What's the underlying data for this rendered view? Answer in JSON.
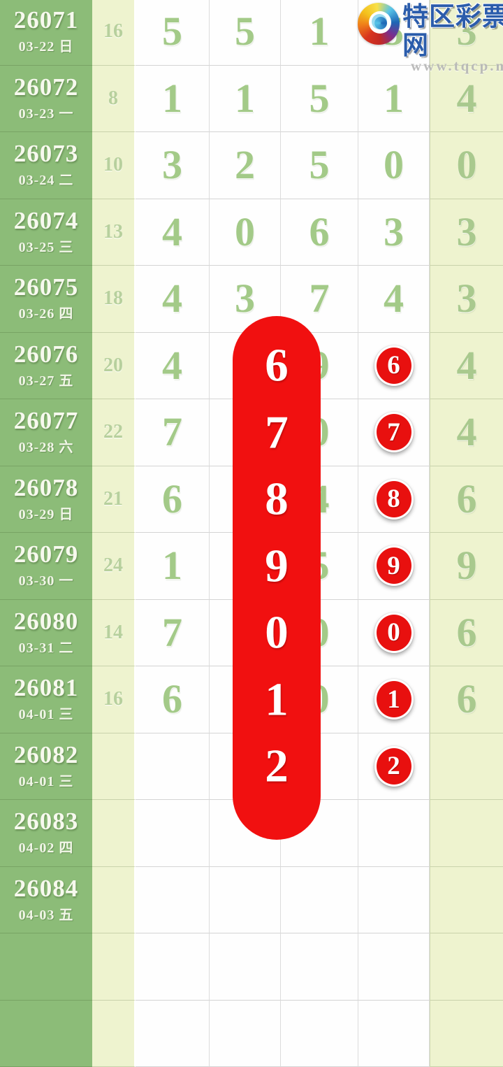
{
  "brand": {
    "site_name": "特区彩票网",
    "site_url": "www.tqcp.net"
  },
  "colors": {
    "accent_red": "#f11010",
    "green_column": "#8cbc78",
    "pale_cell": "#eef3cf",
    "digit_green": "#a3ca88",
    "logo_blue": "#2b5cab"
  },
  "overlay": {
    "pill_digits": [
      "6",
      "7",
      "8",
      "9",
      "0",
      "1",
      "2"
    ]
  },
  "table": {
    "rows": [
      {
        "issue": "26071",
        "date": "03-22 日",
        "count": "16",
        "values": [
          "5",
          "5",
          "1",
          "5",
          "3"
        ],
        "red": ""
      },
      {
        "issue": "26072",
        "date": "03-23 一",
        "count": "8",
        "values": [
          "1",
          "1",
          "5",
          "1",
          "4"
        ],
        "red": ""
      },
      {
        "issue": "26073",
        "date": "03-24 二",
        "count": "10",
        "values": [
          "3",
          "2",
          "5",
          "0",
          "0"
        ],
        "red": ""
      },
      {
        "issue": "26074",
        "date": "03-25 三",
        "count": "13",
        "values": [
          "4",
          "0",
          "6",
          "3",
          "3"
        ],
        "red": ""
      },
      {
        "issue": "26075",
        "date": "03-26 四",
        "count": "18",
        "values": [
          "4",
          "3",
          "7",
          "4",
          "3"
        ],
        "red": ""
      },
      {
        "issue": "26076",
        "date": "03-27 五",
        "count": "20",
        "values": [
          "4",
          "",
          "9",
          "",
          "4"
        ],
        "red": "6"
      },
      {
        "issue": "26077",
        "date": "03-28 六",
        "count": "22",
        "values": [
          "7",
          "",
          "0",
          "",
          "4"
        ],
        "red": "7"
      },
      {
        "issue": "26078",
        "date": "03-29 日",
        "count": "21",
        "values": [
          "6",
          "",
          "4",
          "",
          "6"
        ],
        "red": "8"
      },
      {
        "issue": "26079",
        "date": "03-30 一",
        "count": "24",
        "values": [
          "1",
          "",
          "5",
          "",
          "9"
        ],
        "red": "9"
      },
      {
        "issue": "26080",
        "date": "03-31 二",
        "count": "14",
        "values": [
          "7",
          "",
          "0",
          "",
          "6"
        ],
        "red": "0"
      },
      {
        "issue": "26081",
        "date": "04-01 三",
        "count": "16",
        "values": [
          "6",
          "",
          "0",
          "",
          "6"
        ],
        "red": "1"
      },
      {
        "issue": "26082",
        "date": "04-01 三",
        "count": "",
        "values": [
          "",
          "",
          "",
          "",
          ""
        ],
        "red": "2"
      },
      {
        "issue": "26083",
        "date": "04-02 四",
        "count": "",
        "values": [
          "",
          "",
          "",
          "",
          ""
        ],
        "red": ""
      },
      {
        "issue": "26084",
        "date": "04-03 五",
        "count": "",
        "values": [
          "",
          "",
          "",
          "",
          ""
        ],
        "red": ""
      },
      {
        "issue": "",
        "date": "",
        "count": "",
        "values": [
          "",
          "",
          "",
          "",
          ""
        ],
        "red": ""
      },
      {
        "issue": "",
        "date": "",
        "count": "",
        "values": [
          "",
          "",
          "",
          "",
          ""
        ],
        "red": ""
      }
    ]
  }
}
